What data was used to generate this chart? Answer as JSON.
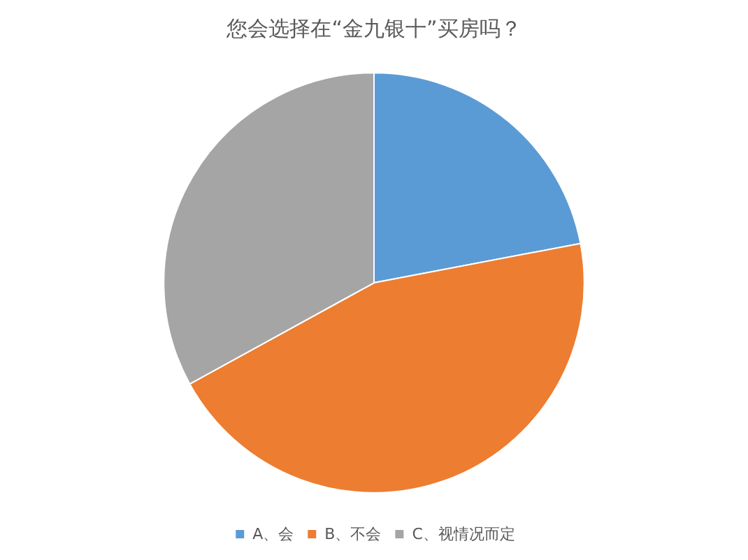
{
  "chart_data": {
    "type": "pie",
    "title": "您会选择在“金九银十”买房吗？",
    "categories": [
      "A、会",
      "B、不会",
      "C、视情况而定"
    ],
    "values": [
      22,
      45,
      33
    ],
    "colors": [
      "#5b9bd5",
      "#ed7d31",
      "#a5a5a5"
    ],
    "legend": "bottom"
  }
}
